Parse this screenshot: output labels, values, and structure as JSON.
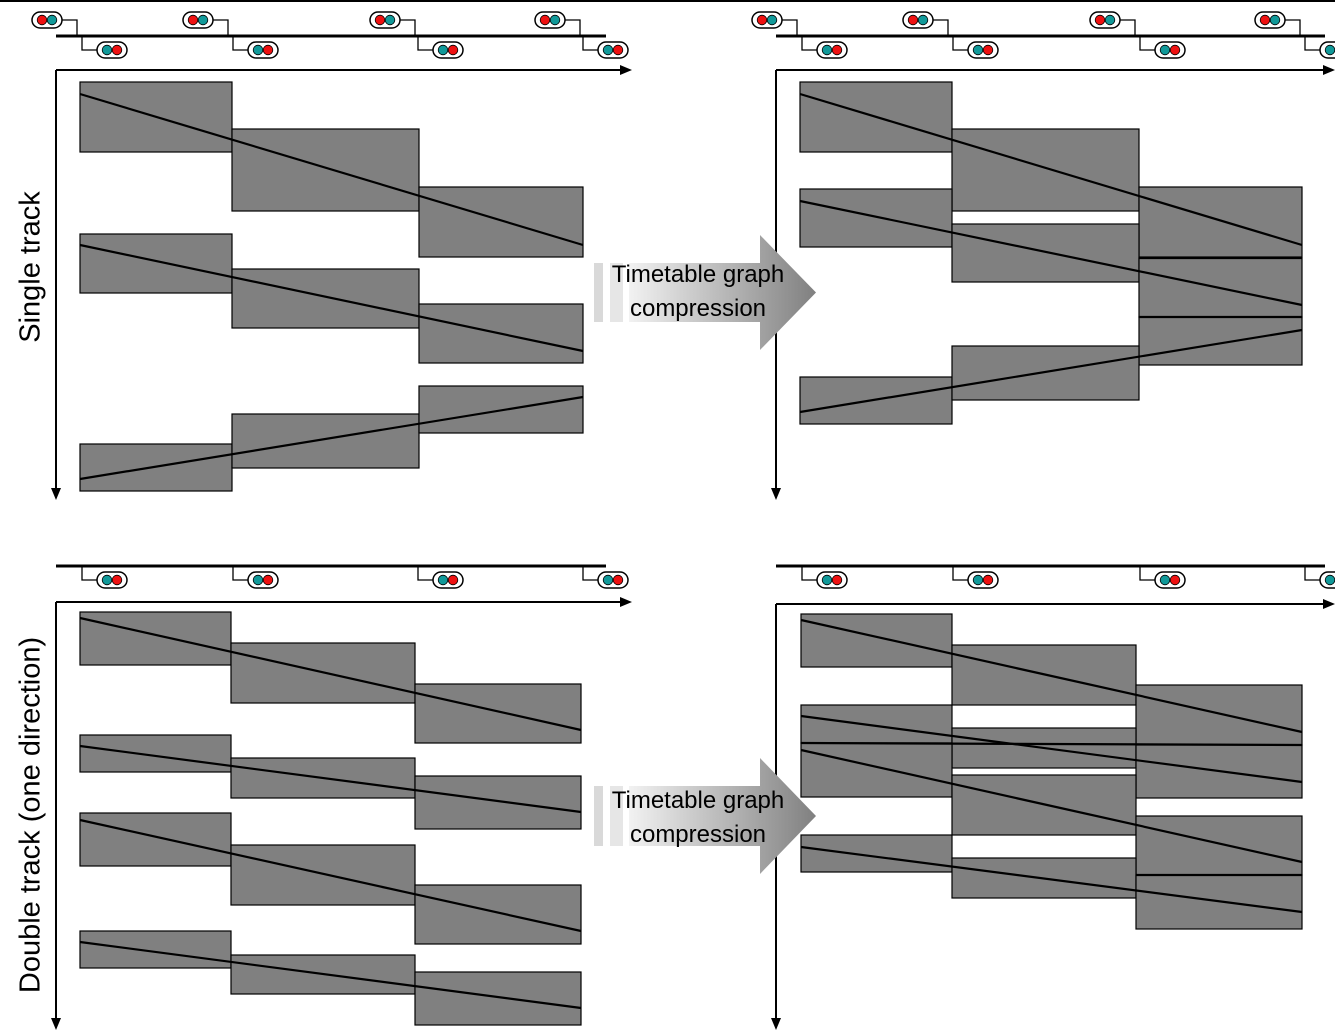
{
  "colors": {
    "block": "#808080",
    "line": "#000000",
    "signal_red": "#ee1111",
    "signal_teal": "#119999",
    "arrow_dark": "#808080",
    "arrow_light": "#f2f2f2"
  },
  "rows": [
    {
      "label": "Single track"
    },
    {
      "label": "Double track (one direction)"
    }
  ],
  "arrows": [
    {
      "line1": "Timetable graph",
      "line2": "compression"
    },
    {
      "line1": "Timetable graph",
      "line2": "compression"
    }
  ],
  "icons": [
    "signal-red-teal-icon",
    "signal-teal-red-icon",
    "arrow-right-icon"
  ]
}
